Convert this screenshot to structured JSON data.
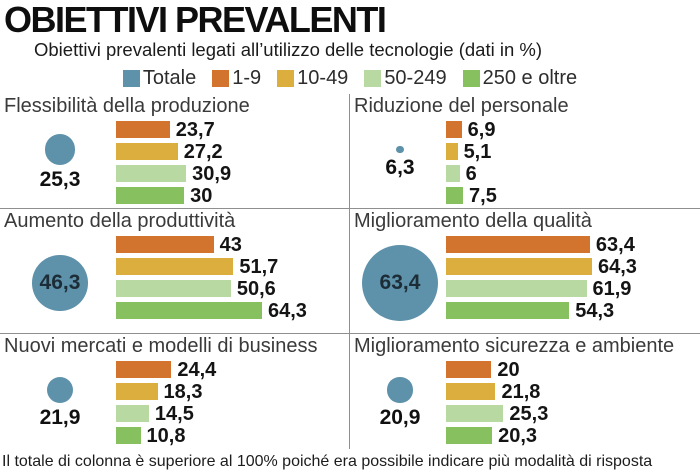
{
  "header": {
    "title": "OBIETTIVI PREVALENTI",
    "subtitle": "Obiettivi prevalenti legati all’utilizzo delle tecnologie (dati in %)"
  },
  "colors": {
    "totale_blue": "#5e92aa",
    "orange_1_9": "#d2742e",
    "gold_10_49": "#dcae3e",
    "light_green_50_249": "#b9d9a2",
    "green_250_plus": "#87c05f",
    "divider_gray": "#8f8f8f"
  },
  "chart_data": {
    "type": "bar",
    "unit": "%",
    "legend_position": "top-center",
    "legend": [
      {
        "label": "Totale",
        "color": "#5e92aa"
      },
      {
        "label": "1-9",
        "color": "#d2742e"
      },
      {
        "label": "10-49",
        "color": "#dcae3e"
      },
      {
        "label": "50-249",
        "color": "#b9d9a2"
      },
      {
        "label": "250 e oltre",
        "color": "#87c05f"
      }
    ],
    "series_labels": [
      "1-9",
      "10-49",
      "50-249",
      "250 e oltre"
    ],
    "panels": [
      {
        "title": "Flessibilità della produzione",
        "totale": 25.3,
        "totale_label": "25,3",
        "values": [
          23.7,
          27.2,
          30.9,
          30
        ],
        "value_labels": [
          "23,7",
          "27,2",
          "30,9",
          "30"
        ]
      },
      {
        "title": "Riduzione del personale",
        "totale": 6.3,
        "totale_label": "6,3",
        "values": [
          6.9,
          5.1,
          6,
          7.5
        ],
        "value_labels": [
          "6,9",
          "5,1",
          "6",
          "7,5"
        ]
      },
      {
        "title": "Aumento della produttività",
        "totale": 46.3,
        "totale_label": "46,3",
        "values": [
          43,
          51.7,
          50.6,
          64.3
        ],
        "value_labels": [
          "43",
          "51,7",
          "50,6",
          "64,3"
        ]
      },
      {
        "title": "Miglioramento della qualità",
        "totale": 63.4,
        "totale_label": "63,4",
        "values": [
          63.4,
          64.3,
          61.9,
          54.3
        ],
        "value_labels": [
          "63,4",
          "64,3",
          "61,9",
          "54,3"
        ]
      },
      {
        "title": "Nuovi mercati e modelli di business",
        "totale": 21.9,
        "totale_label": "21,9",
        "values": [
          24.4,
          18.3,
          14.5,
          10.8
        ],
        "value_labels": [
          "24,4",
          "18,3",
          "14,5",
          "10,8"
        ]
      },
      {
        "title": "Miglioramento sicurezza e ambiente",
        "totale": 20.9,
        "totale_label": "20,9",
        "values": [
          20,
          21.8,
          25.3,
          20.3
        ],
        "value_labels": [
          "20",
          "21,8",
          "25,3",
          "20,3"
        ]
      }
    ]
  },
  "footer": "Il totale di colonna è superiore al 100% poiché era possibile indicare più modalità di risposta"
}
